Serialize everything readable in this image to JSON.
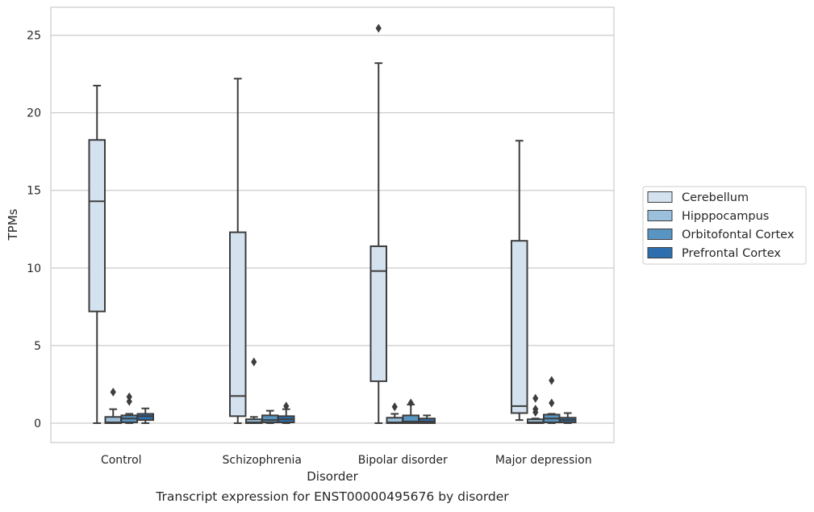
{
  "caption": "Transcript expression for ENST00000495676 by disorder",
  "chart_data": {
    "type": "box",
    "title": "",
    "xlabel": "Disorder",
    "ylabel": "TPMs",
    "ylim": [
      -1.25,
      26.8
    ],
    "yticks": [
      0,
      5,
      10,
      15,
      20,
      25
    ],
    "grid": "horizontal",
    "legend_position": "right",
    "categories": [
      "Control",
      "Schizophrenia",
      "Bipolar disorder",
      "Major depression"
    ],
    "series": [
      {
        "name": "Cerebellum",
        "color": "#d4e2f0",
        "boxes": [
          {
            "category": "Control",
            "whisker_low": 0,
            "q1": 7.2,
            "median": 14.3,
            "q3": 18.25,
            "whisker_high": 21.75,
            "outliers": []
          },
          {
            "category": "Schizophrenia",
            "whisker_low": 0,
            "q1": 0.45,
            "median": 1.75,
            "q3": 12.3,
            "whisker_high": 22.2,
            "outliers": []
          },
          {
            "category": "Bipolar disorder",
            "whisker_low": 0,
            "q1": 2.7,
            "median": 9.8,
            "q3": 11.4,
            "whisker_high": 23.2,
            "outliers": [
              25.45
            ]
          },
          {
            "category": "Major depression",
            "whisker_low": 0.2,
            "q1": 0.65,
            "median": 1.1,
            "q3": 11.75,
            "whisker_high": 18.2,
            "outliers": []
          }
        ]
      },
      {
        "name": "Hipppocampus",
        "color": "#9ac0dc",
        "boxes": [
          {
            "category": "Control",
            "whisker_low": 0,
            "q1": 0,
            "median": 0.05,
            "q3": 0.4,
            "whisker_high": 0.9,
            "outliers": [
              2.0
            ]
          },
          {
            "category": "Schizophrenia",
            "whisker_low": 0,
            "q1": 0,
            "median": 0.05,
            "q3": 0.25,
            "whisker_high": 0.4,
            "outliers": [
              3.95
            ]
          },
          {
            "category": "Bipolar disorder",
            "whisker_low": 0,
            "q1": 0,
            "median": 0.05,
            "q3": 0.35,
            "whisker_high": 0.6,
            "outliers": [
              1.05
            ]
          },
          {
            "category": "Major depression",
            "whisker_low": 0,
            "q1": 0,
            "median": 0.05,
            "q3": 0.25,
            "whisker_high": 0.3,
            "outliers": [
              0.7,
              0.9,
              1.6
            ]
          }
        ]
      },
      {
        "name": "Orbitofontal Cortex",
        "color": "#5895c2",
        "boxes": [
          {
            "category": "Control",
            "whisker_low": 0,
            "q1": 0.05,
            "median": 0.3,
            "q3": 0.5,
            "whisker_high": 0.6,
            "outliers": [
              1.4,
              1.7
            ]
          },
          {
            "category": "Schizophrenia",
            "whisker_low": 0,
            "q1": 0.05,
            "median": 0.2,
            "q3": 0.5,
            "whisker_high": 0.8,
            "outliers": []
          },
          {
            "category": "Bipolar disorder",
            "whisker_low": 0,
            "q1": 0,
            "median": 0.1,
            "q3": 0.5,
            "whisker_high": 1.2,
            "outliers": [
              1.3
            ]
          },
          {
            "category": "Major depression",
            "whisker_low": 0,
            "q1": 0.05,
            "median": 0.3,
            "q3": 0.55,
            "whisker_high": 0.6,
            "outliers": [
              1.3,
              2.75
            ]
          }
        ]
      },
      {
        "name": "Prefrontal Cortex",
        "color": "#2d6fae",
        "boxes": [
          {
            "category": "Control",
            "whisker_low": 0,
            "q1": 0.2,
            "median": 0.45,
            "q3": 0.6,
            "whisker_high": 0.95,
            "outliers": []
          },
          {
            "category": "Schizophrenia",
            "whisker_low": 0,
            "q1": 0.05,
            "median": 0.25,
            "q3": 0.45,
            "whisker_high": 0.9,
            "outliers": [
              1.1
            ]
          },
          {
            "category": "Bipolar disorder",
            "whisker_low": 0,
            "q1": 0,
            "median": 0.1,
            "q3": 0.3,
            "whisker_high": 0.5,
            "outliers": []
          },
          {
            "category": "Major depression",
            "whisker_low": 0,
            "q1": 0.05,
            "median": 0.2,
            "q3": 0.35,
            "whisker_high": 0.65,
            "outliers": []
          }
        ]
      }
    ]
  }
}
